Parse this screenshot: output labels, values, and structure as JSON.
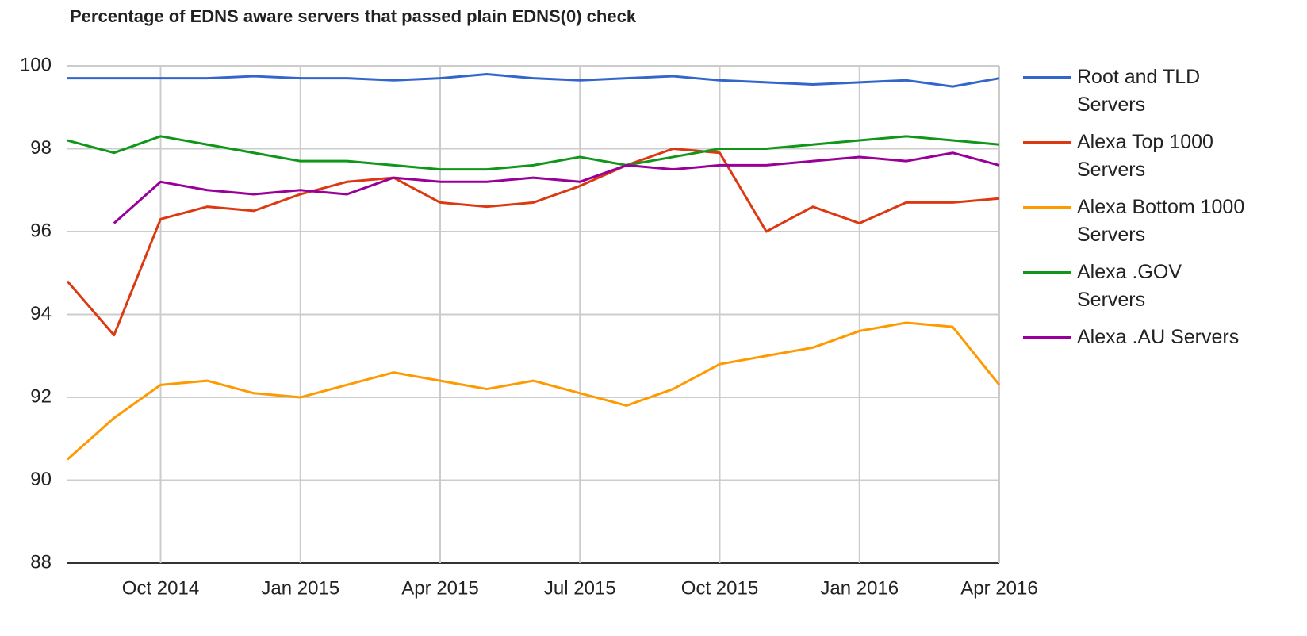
{
  "chart_data": {
    "type": "line",
    "title": "Percentage of EDNS aware servers that passed plain EDNS(0) check",
    "x": [
      "2014-08",
      "2014-09",
      "2014-10",
      "2014-11",
      "2014-12",
      "2015-01",
      "2015-02",
      "2015-03",
      "2015-04",
      "2015-05",
      "2015-06",
      "2015-07",
      "2015-08",
      "2015-09",
      "2015-10",
      "2015-11",
      "2015-12",
      "2016-01",
      "2016-02",
      "2016-03",
      "2016-04"
    ],
    "series": [
      {
        "name": "Root and TLD Servers",
        "color": "#3366cc",
        "values": [
          99.7,
          99.7,
          99.7,
          99.7,
          99.75,
          99.7,
          99.7,
          99.65,
          99.7,
          99.8,
          99.7,
          99.65,
          99.7,
          99.75,
          99.65,
          99.6,
          99.55,
          99.6,
          99.65,
          99.5,
          99.7
        ]
      },
      {
        "name": "Alexa Top 1000 Servers",
        "color": "#dc3912",
        "values": [
          94.8,
          93.5,
          96.3,
          96.6,
          96.5,
          96.9,
          97.2,
          97.3,
          96.7,
          96.6,
          96.7,
          97.1,
          97.6,
          98.0,
          97.9,
          96.0,
          96.6,
          96.2,
          96.7,
          96.7,
          96.8
        ]
      },
      {
        "name": "Alexa Bottom 1000 Servers",
        "color": "#ff9900",
        "values": [
          90.5,
          91.5,
          92.3,
          92.4,
          92.1,
          92.0,
          92.3,
          92.6,
          92.4,
          92.2,
          92.4,
          92.1,
          91.8,
          92.2,
          92.8,
          93.0,
          93.2,
          93.6,
          93.8,
          93.7,
          92.3
        ]
      },
      {
        "name": "Alexa .GOV Servers",
        "color": "#109618",
        "values": [
          98.2,
          97.9,
          98.3,
          98.1,
          97.9,
          97.7,
          97.7,
          97.6,
          97.5,
          97.5,
          97.6,
          97.8,
          97.6,
          97.8,
          98.0,
          98.0,
          98.1,
          98.2,
          98.3,
          98.2,
          98.1
        ]
      },
      {
        "name": "Alexa .AU Servers",
        "color": "#990099",
        "values": [
          null,
          96.2,
          97.2,
          97.0,
          96.9,
          97.0,
          96.9,
          97.3,
          97.2,
          97.2,
          97.3,
          97.2,
          97.6,
          97.5,
          97.6,
          97.6,
          97.7,
          97.8,
          97.7,
          97.9,
          97.6
        ]
      }
    ],
    "xlim": [
      "2014-08",
      "2016-04"
    ],
    "xticks": [
      {
        "value": "2014-10",
        "label": "Oct 2014"
      },
      {
        "value": "2015-01",
        "label": "Jan 2015"
      },
      {
        "value": "2015-04",
        "label": "Apr 2015"
      },
      {
        "value": "2015-07",
        "label": "Jul 2015"
      },
      {
        "value": "2015-10",
        "label": "Oct 2015"
      },
      {
        "value": "2016-01",
        "label": "Jan 2016"
      },
      {
        "value": "2016-04",
        "label": "Apr 2016"
      }
    ],
    "ylim": [
      88,
      100
    ],
    "yticks": [
      88,
      90,
      92,
      94,
      96,
      98,
      100
    ],
    "grid": true,
    "legend": "right"
  }
}
